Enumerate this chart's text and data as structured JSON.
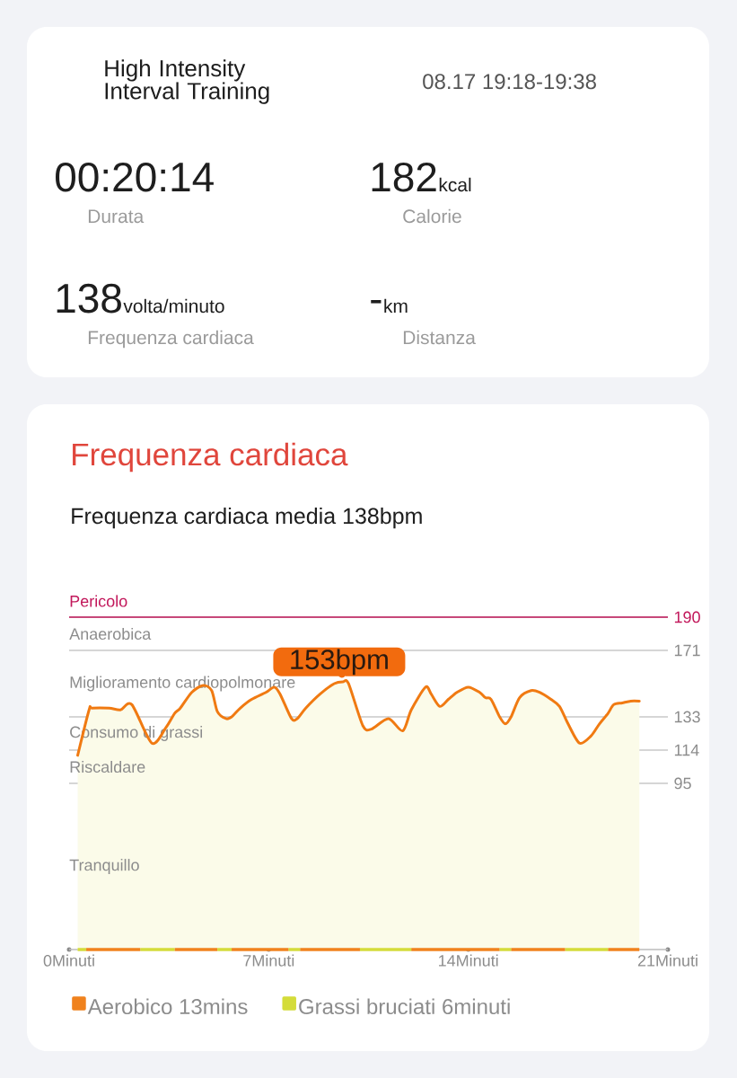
{
  "chart_data": [
    {
      "type": "other",
      "title": "High Intensity Interval Training",
      "subtitle": "08.17 19:18-19:38",
      "annotations": [
        "00:20:14",
        "Durata",
        "182",
        "kcal",
        "Calorie",
        "138",
        "volta/minuto",
        "Frequenza cardiaca",
        "-",
        "km",
        "Distanza"
      ]
    },
    {
      "type": "area",
      "title": "Frequenza cardiaca",
      "subtitle": "Frequenza cardiaca media 138bpm",
      "x": [
        0.3,
        0.7,
        0.8,
        1.4,
        1.8,
        2.2,
        2.9,
        3.4,
        3.7,
        3.9,
        4.3,
        4.7,
        5.0,
        5.2,
        5.5,
        5.7,
        6.0,
        6.4,
        6.9,
        7.2,
        7.4,
        7.8,
        8.0,
        8.3,
        8.8,
        9.3,
        9.6,
        9.8,
        10.3,
        10.6,
        11.2,
        11.7,
        12.0,
        12.5,
        12.7,
        13.0,
        13.3,
        13.6,
        14.0,
        14.4,
        14.6,
        14.8,
        15.1,
        15.3,
        15.5,
        15.8,
        16.2,
        16.5,
        16.9,
        17.2,
        17.5,
        17.9,
        18.3,
        18.6,
        18.9,
        19.1,
        19.4,
        19.7,
        20.0
      ],
      "xlim": [
        0,
        21
      ],
      "xticks": [
        {
          "value": 0,
          "label": "0Minuti"
        },
        {
          "value": 7,
          "label": "7Minuti"
        },
        {
          "value": 14,
          "label": "14Minuti"
        },
        {
          "value": 21,
          "label": "21Minuti"
        }
      ],
      "ylim": [
        0,
        190
      ],
      "yticks": [
        95,
        114,
        133,
        171,
        190
      ],
      "grid": "y",
      "series": [
        {
          "color": "#f07a12",
          "values": [
            111,
            137,
            138,
            138,
            137,
            140,
            118,
            127,
            135,
            138,
            147,
            151,
            148,
            136,
            132,
            133,
            138,
            143,
            147,
            150,
            146,
            132,
            132,
            138,
            146,
            152,
            153,
            152,
            128,
            126,
            132,
            125,
            137,
            150,
            146,
            139,
            143,
            147,
            150,
            147,
            144,
            143,
            133,
            129,
            133,
            144,
            148,
            147,
            143,
            139,
            129,
            118,
            122,
            129,
            135,
            140,
            141,
            142,
            142
          ]
        },
        {
          "name": "Aerobico 13mins",
          "color": "#f0821e",
          "type": "line",
          "x": [
            0.6,
            2.5
          ],
          "values": [
            0,
            0
          ]
        },
        {
          "name": "Grassi bruciati 6minuti",
          "color": "#d4dc3a",
          "type": "line",
          "x": [
            0.3,
            0.6
          ],
          "values": [
            0,
            0
          ]
        },
        {
          "color": "#f0821e",
          "type": "line",
          "x": [
            3.7,
            5.2
          ],
          "values": [
            0,
            0
          ]
        },
        {
          "color": "#f0821e",
          "type": "line",
          "x": [
            5.7,
            7.7
          ],
          "values": [
            0,
            0
          ]
        },
        {
          "color": "#f0821e",
          "type": "line",
          "x": [
            8.1,
            10.2
          ],
          "values": [
            0,
            0
          ]
        },
        {
          "color": "#f0821e",
          "type": "line",
          "x": [
            12.0,
            15.1
          ],
          "values": [
            0,
            0
          ]
        },
        {
          "color": "#f0821e",
          "type": "line",
          "x": [
            15.5,
            17.4
          ],
          "values": [
            0,
            0
          ]
        },
        {
          "color": "#f0821e",
          "type": "line",
          "x": [
            18.9,
            20.0
          ],
          "values": [
            0,
            0
          ]
        },
        {
          "color": "#d4dc3a",
          "type": "line",
          "x": [
            2.5,
            3.7
          ],
          "values": [
            0,
            0
          ]
        },
        {
          "color": "#d4dc3a",
          "type": "line",
          "x": [
            5.2,
            5.7
          ],
          "values": [
            0,
            0
          ]
        },
        {
          "color": "#d4dc3a",
          "type": "line",
          "x": [
            7.7,
            8.1
          ],
          "values": [
            0,
            0
          ]
        },
        {
          "color": "#d4dc3a",
          "type": "line",
          "x": [
            10.2,
            12.0
          ],
          "values": [
            0,
            0
          ]
        },
        {
          "color": "#d4dc3a",
          "type": "line",
          "x": [
            15.1,
            15.5
          ],
          "values": [
            0,
            0
          ]
        },
        {
          "color": "#d4dc3a",
          "type": "line",
          "x": [
            17.4,
            18.9
          ],
          "values": [
            0,
            0
          ]
        }
      ],
      "ref_lines": [
        {
          "axis": "y",
          "value": 190,
          "label": "Pericolo",
          "color": "#c2185b"
        }
      ],
      "annotations": [
        {
          "text": "153bpm",
          "x": 9.6,
          "y": 153
        },
        "Anaerobica",
        "Miglioramento cardiopolmonare",
        "Consumo di grassi",
        "Riscaldare",
        "Tranquillo"
      ],
      "legend": "bottom"
    }
  ]
}
